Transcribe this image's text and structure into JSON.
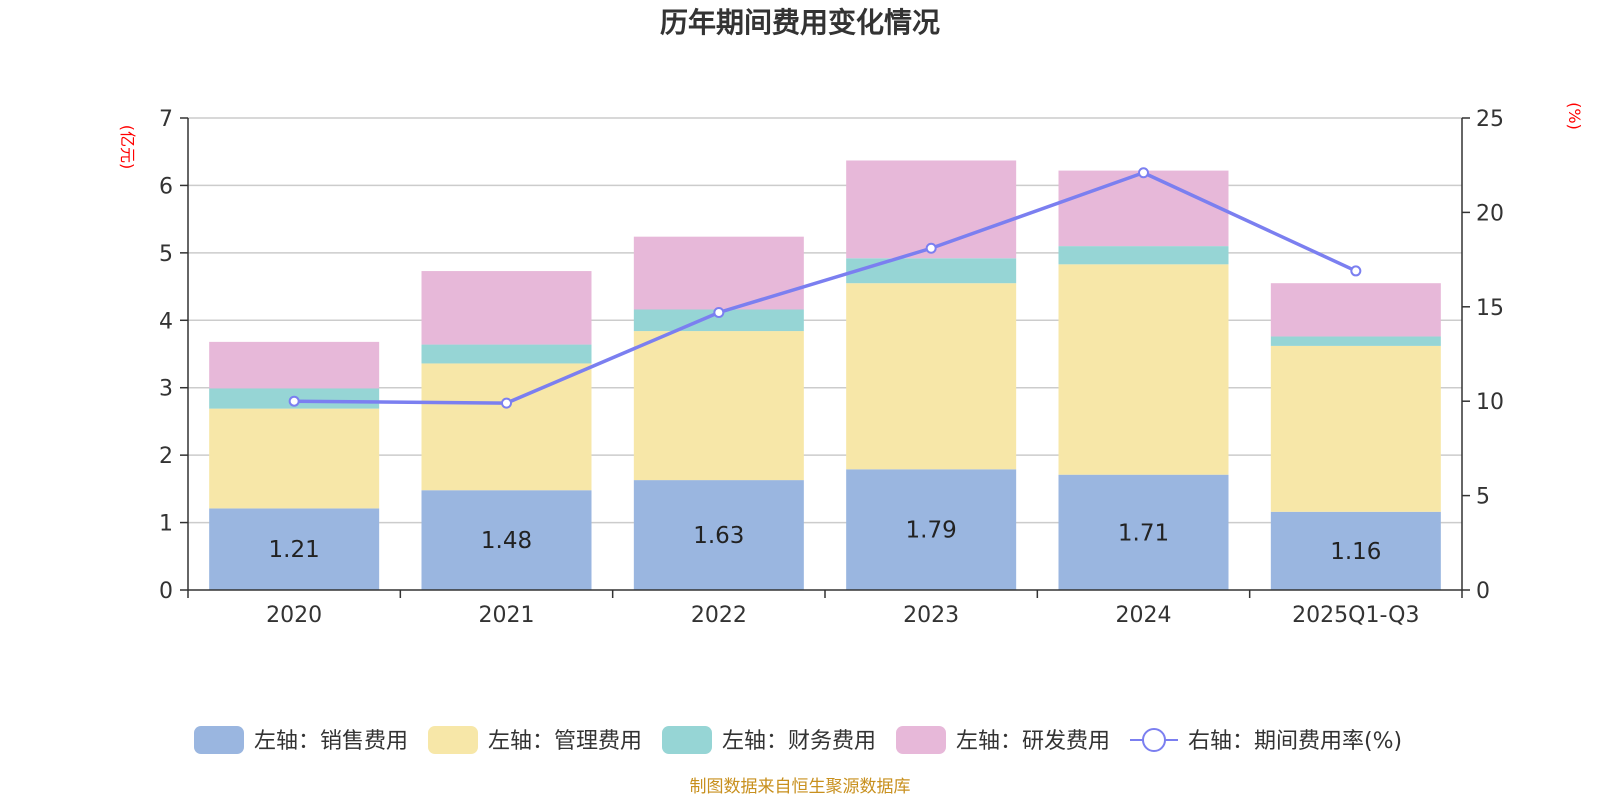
{
  "chart_data": {
    "type": "bar",
    "stacked": true,
    "title": "历年期间费用变化情况",
    "categories": [
      "2020",
      "2021",
      "2022",
      "2023",
      "2024",
      "2025Q1-Q3"
    ],
    "left_axis": {
      "unit_label": "(亿元)",
      "ylim": [
        0,
        7
      ],
      "ticks": [
        "0",
        "1",
        "2",
        "3",
        "4",
        "5",
        "6",
        "7"
      ]
    },
    "right_axis": {
      "unit_label": "(%)",
      "ylim": [
        0,
        25
      ],
      "ticks": [
        "0",
        "5",
        "10",
        "15",
        "20",
        "25"
      ]
    },
    "series": [
      {
        "name": "左轴：销售费用",
        "axis": "left",
        "color": "#9ab6e0",
        "values": [
          1.21,
          1.48,
          1.63,
          1.79,
          1.71,
          1.16
        ],
        "labels": [
          "1.21",
          "1.48",
          "1.63",
          "1.79",
          "1.71",
          "1.16"
        ]
      },
      {
        "name": "左轴：管理费用",
        "axis": "left",
        "color": "#f7e7a8",
        "values": [
          1.48,
          1.88,
          2.21,
          2.76,
          3.12,
          2.46
        ]
      },
      {
        "name": "左轴：财务费用",
        "axis": "left",
        "color": "#96d5d5",
        "values": [
          0.3,
          0.28,
          0.32,
          0.37,
          0.27,
          0.14
        ]
      },
      {
        "name": "左轴：研发费用",
        "axis": "left",
        "color": "#e7b8d9",
        "values": [
          0.69,
          1.09,
          1.08,
          1.45,
          1.12,
          0.79
        ]
      },
      {
        "name": "右轴：期间费用率(%)",
        "axis": "right",
        "type": "line",
        "color": "#7b7ff0",
        "values": [
          10.0,
          9.9,
          14.7,
          18.1,
          22.1,
          16.9
        ]
      }
    ],
    "grid": true,
    "legend_position": "bottom",
    "source": "制图数据来自恒生聚源数据库"
  }
}
